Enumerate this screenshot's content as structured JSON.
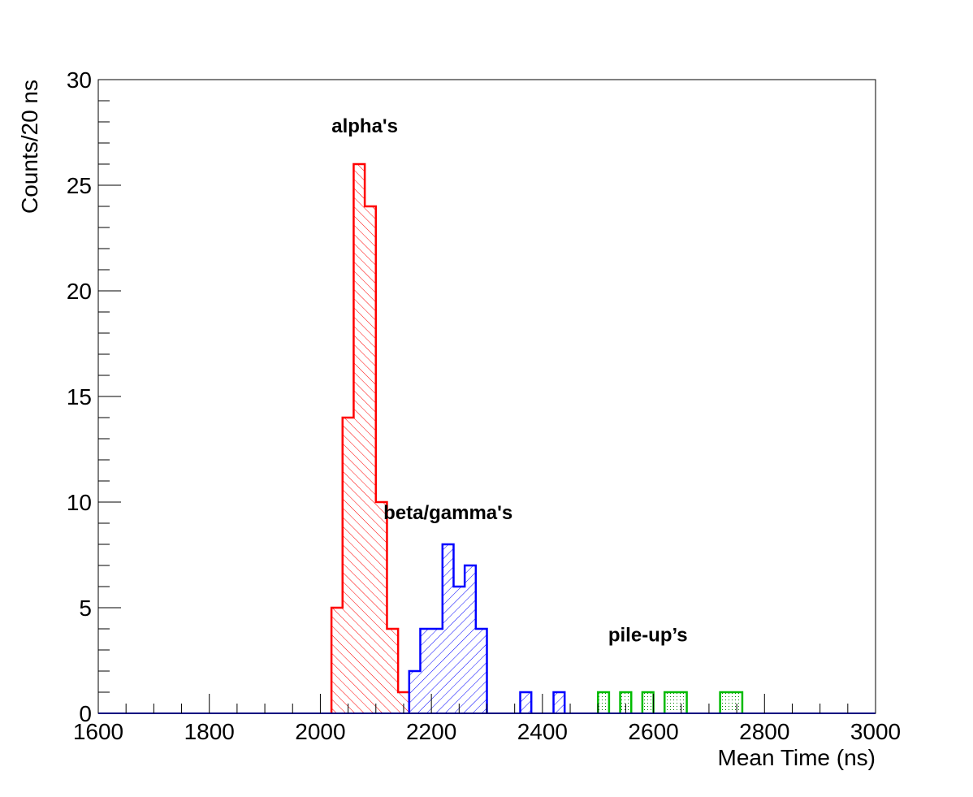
{
  "chart_data": {
    "type": "histogram",
    "xlabel": "Mean Time (ns)",
    "ylabel": "Counts/20 ns",
    "xlim": [
      1600,
      3000
    ],
    "ylim": [
      0,
      30
    ],
    "x_ticks": [
      1600,
      1800,
      2000,
      2200,
      2400,
      2600,
      2800,
      3000
    ],
    "y_ticks": [
      0,
      5,
      10,
      15,
      20,
      25,
      30
    ],
    "bin_width": 20,
    "grid": false,
    "legend": "none",
    "series": [
      {
        "name": "alpha's",
        "color": "#ff0000",
        "fill": "hatch-diagonal-down",
        "bins": [
          {
            "x": 2020,
            "count": 5
          },
          {
            "x": 2040,
            "count": 14
          },
          {
            "x": 2060,
            "count": 26
          },
          {
            "x": 2080,
            "count": 24
          },
          {
            "x": 2100,
            "count": 10
          },
          {
            "x": 2120,
            "count": 4
          },
          {
            "x": 2140,
            "count": 1
          }
        ]
      },
      {
        "name": "beta/gamma's",
        "color": "#0000ff",
        "fill": "hatch-diagonal-up",
        "bins": [
          {
            "x": 2160,
            "count": 2
          },
          {
            "x": 2180,
            "count": 4
          },
          {
            "x": 2200,
            "count": 4
          },
          {
            "x": 2220,
            "count": 8
          },
          {
            "x": 2240,
            "count": 6
          },
          {
            "x": 2260,
            "count": 7
          },
          {
            "x": 2280,
            "count": 4
          },
          {
            "x": 2360,
            "count": 1
          },
          {
            "x": 2420,
            "count": 1
          }
        ]
      },
      {
        "name": "pile-up’s",
        "color": "#00bb00",
        "fill": "dots",
        "bins": [
          {
            "x": 2500,
            "count": 1
          },
          {
            "x": 2540,
            "count": 1
          },
          {
            "x": 2580,
            "count": 1
          },
          {
            "x": 2620,
            "count": 1
          },
          {
            "x": 2640,
            "count": 1
          },
          {
            "x": 2720,
            "count": 1
          },
          {
            "x": 2740,
            "count": 1
          }
        ]
      }
    ],
    "annotations": [
      {
        "text": "alpha's",
        "x": 2080,
        "y": 27.5
      },
      {
        "text": "beta/gamma's",
        "x": 2230,
        "y": 9.2
      },
      {
        "text": "pile-up’s",
        "x": 2590,
        "y": 3.4
      }
    ]
  }
}
